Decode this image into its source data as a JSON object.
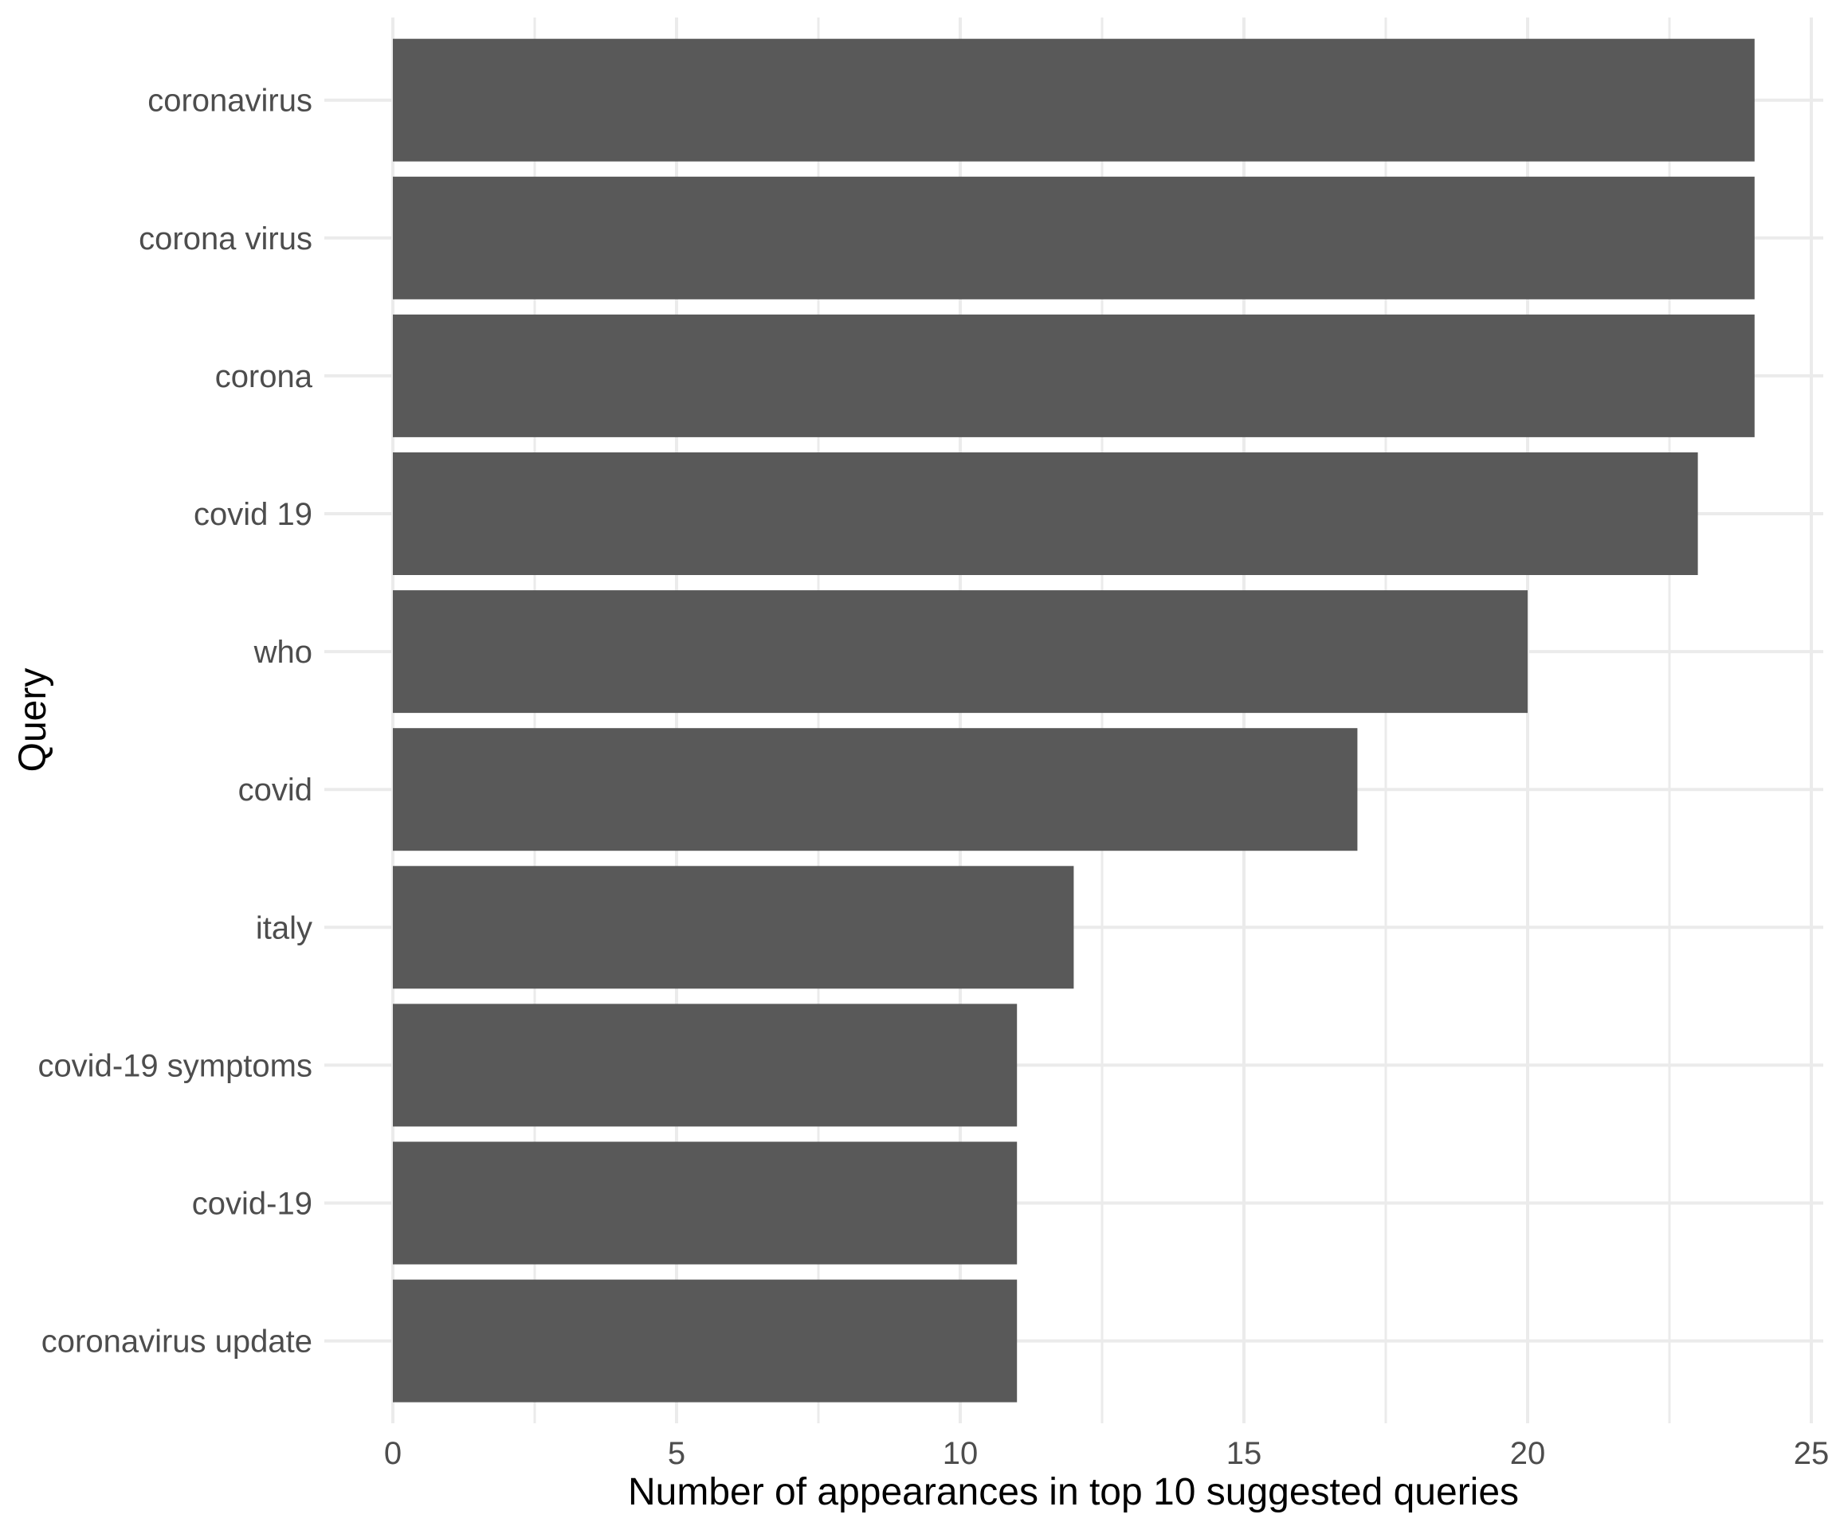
{
  "chart_data": {
    "type": "bar",
    "orientation": "horizontal",
    "title": "",
    "xlabel": "Number of appearances in top 10 suggested queries",
    "ylabel": "Query",
    "categories": [
      "coronavirus",
      "corona virus",
      "corona",
      "covid 19",
      "who",
      "covid",
      "italy",
      "covid-19 symptoms",
      "covid-19",
      "coronavirus update"
    ],
    "values": [
      24,
      24,
      24,
      23,
      20,
      17,
      12,
      11,
      11,
      11
    ],
    "xlim": [
      0,
      25
    ],
    "xticks": [
      0,
      5,
      10,
      15,
      20,
      25
    ],
    "x_minor_ticks": [
      2.5,
      7.5,
      12.5,
      17.5,
      22.5
    ],
    "grid": "on",
    "legend": "none",
    "bar_width_fraction": 0.9,
    "colors": {
      "bar": "#595959",
      "grid_major": "#EBEBEB",
      "grid_minor": "#EBEBEB",
      "axis_text": "#4D4D4D",
      "axis_title": "#000000",
      "background": "#FFFFFF"
    }
  }
}
